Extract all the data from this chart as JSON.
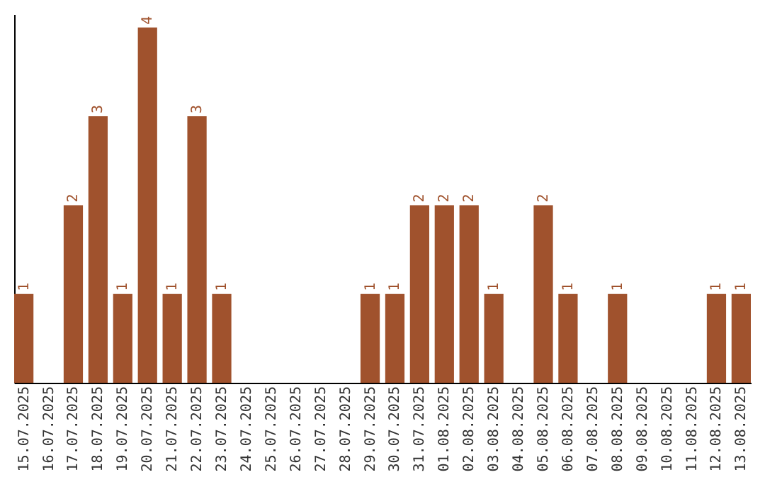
{
  "chart_data": {
    "type": "bar",
    "categories": [
      "15.07.2025",
      "16.07.2025",
      "17.07.2025",
      "18.07.2025",
      "19.07.2025",
      "20.07.2025",
      "21.07.2025",
      "22.07.2025",
      "23.07.2025",
      "24.07.2025",
      "25.07.2025",
      "26.07.2025",
      "27.07.2025",
      "28.07.2025",
      "29.07.2025",
      "30.07.2025",
      "31.07.2025",
      "01.08.2025",
      "02.08.2025",
      "03.08.2025",
      "04.08.2025",
      "05.08.2025",
      "06.08.2025",
      "07.08.2025",
      "08.08.2025",
      "09.08.2025",
      "10.08.2025",
      "11.08.2025",
      "12.08.2025",
      "13.08.2025"
    ],
    "values": [
      1,
      0,
      2,
      3,
      1,
      4,
      1,
      3,
      1,
      0,
      0,
      0,
      0,
      0,
      1,
      1,
      2,
      2,
      2,
      1,
      0,
      2,
      1,
      0,
      1,
      0,
      0,
      0,
      1,
      1
    ],
    "value_labels": [
      "1",
      null,
      "2",
      "3",
      "1",
      "4",
      "1",
      "3",
      "1",
      null,
      null,
      null,
      null,
      null,
      "1",
      "1",
      "2",
      "2",
      "2",
      "1",
      null,
      "2",
      "1",
      null,
      "1",
      null,
      null,
      null,
      "1",
      "1"
    ],
    "color": "#a0522d",
    "ylim": [
      0,
      4.15
    ],
    "tick_labels": "x"
  }
}
